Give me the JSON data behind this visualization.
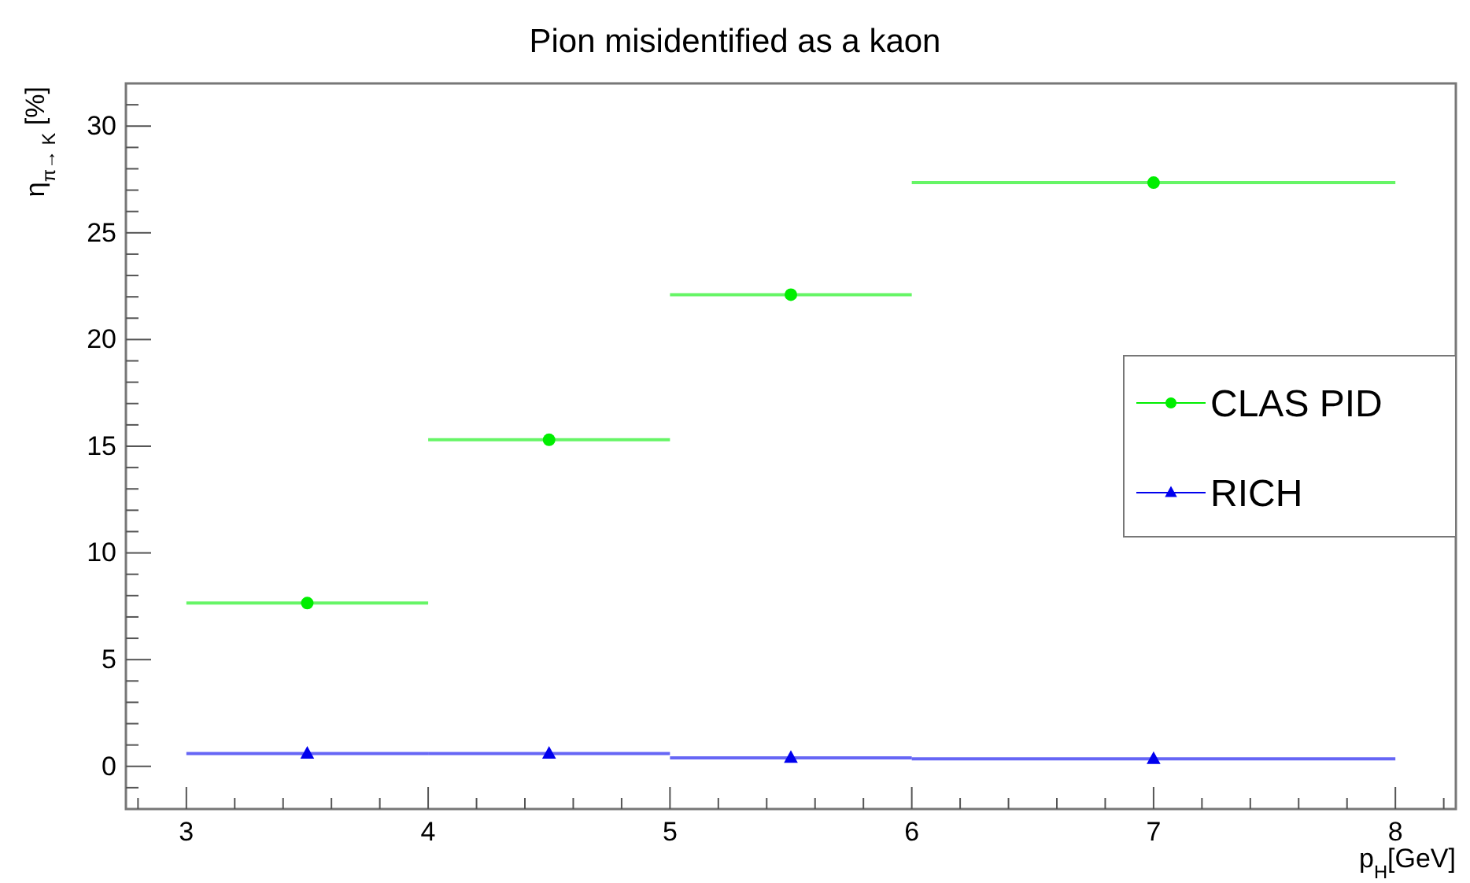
{
  "chart_data": {
    "type": "scatter",
    "title": "Pion misidentified as a kaon",
    "xlabel": "p$_{H}$[GeV]",
    "ylabel": "η$_{π→ K}$ [%]",
    "x": [
      3.5,
      4.5,
      5.5,
      7
    ],
    "series": [
      {
        "name": "CLAS PID",
        "color": "#00ee00",
        "marker": "circle",
        "values": [
          7.65,
          15.3,
          22.1,
          27.35
        ],
        "xerrors": [
          0.5,
          0.5,
          0.5,
          1
        ]
      },
      {
        "name": "RICH",
        "color": "#0000ee",
        "marker": "triangle",
        "values": [
          0.6,
          0.6,
          0.4,
          0.35
        ],
        "xerrors": [
          0.5,
          0.5,
          0.5,
          1
        ]
      }
    ],
    "xlim": [
      2.75,
      8.25
    ],
    "ylim": [
      -2,
      32
    ],
    "xticks": [
      {
        "value": 2.8,
        "label": null
      },
      3,
      {
        "value": 3.2,
        "label": null
      },
      {
        "value": 3.4,
        "label": null
      },
      {
        "value": 3.6,
        "label": null
      },
      {
        "value": 3.8,
        "label": null
      },
      4,
      {
        "value": 4.2,
        "label": null
      },
      {
        "value": 4.4,
        "label": null
      },
      {
        "value": 4.6,
        "label": null
      },
      {
        "value": 4.8,
        "label": null
      },
      5,
      {
        "value": 5.2,
        "label": null
      },
      {
        "value": 5.4,
        "label": null
      },
      {
        "value": 5.6,
        "label": null
      },
      {
        "value": 5.8,
        "label": null
      },
      6,
      {
        "value": 6.2,
        "label": null
      },
      {
        "value": 6.4,
        "label": null
      },
      {
        "value": 6.6,
        "label": null
      },
      {
        "value": 6.8,
        "label": null
      },
      7,
      {
        "value": 7.2,
        "label": null
      },
      {
        "value": 7.4,
        "label": null
      },
      {
        "value": 7.6,
        "label": null
      },
      {
        "value": 7.8,
        "label": null
      },
      8,
      {
        "value": 8.2,
        "label": null
      }
    ],
    "yticks": [
      {
        "value": -1,
        "label": null
      },
      0,
      {
        "value": 1,
        "label": null
      },
      {
        "value": 2,
        "label": null
      },
      {
        "value": 3,
        "label": null
      },
      {
        "value": 4,
        "label": null
      },
      5,
      {
        "value": 6,
        "label": null
      },
      {
        "value": 7,
        "label": null
      },
      {
        "value": 8,
        "label": null
      },
      {
        "value": 9,
        "label": null
      },
      10,
      {
        "value": 11,
        "label": null
      },
      {
        "value": 12,
        "label": null
      },
      {
        "value": 13,
        "label": null
      },
      {
        "value": 14,
        "label": null
      },
      15,
      {
        "value": 16,
        "label": null
      },
      {
        "value": 17,
        "label": null
      },
      {
        "value": 18,
        "label": null
      },
      {
        "value": 19,
        "label": null
      },
      20,
      {
        "value": 21,
        "label": null
      },
      {
        "value": 22,
        "label": null
      },
      {
        "value": 23,
        "label": null
      },
      {
        "value": 24,
        "label": null
      },
      25,
      {
        "value": 26,
        "label": null
      },
      {
        "value": 27,
        "label": null
      },
      {
        "value": 28,
        "label": null
      },
      {
        "value": 29,
        "label": null
      },
      30,
      {
        "value": 31,
        "label": null
      }
    ],
    "legend": "right",
    "grid": false
  }
}
